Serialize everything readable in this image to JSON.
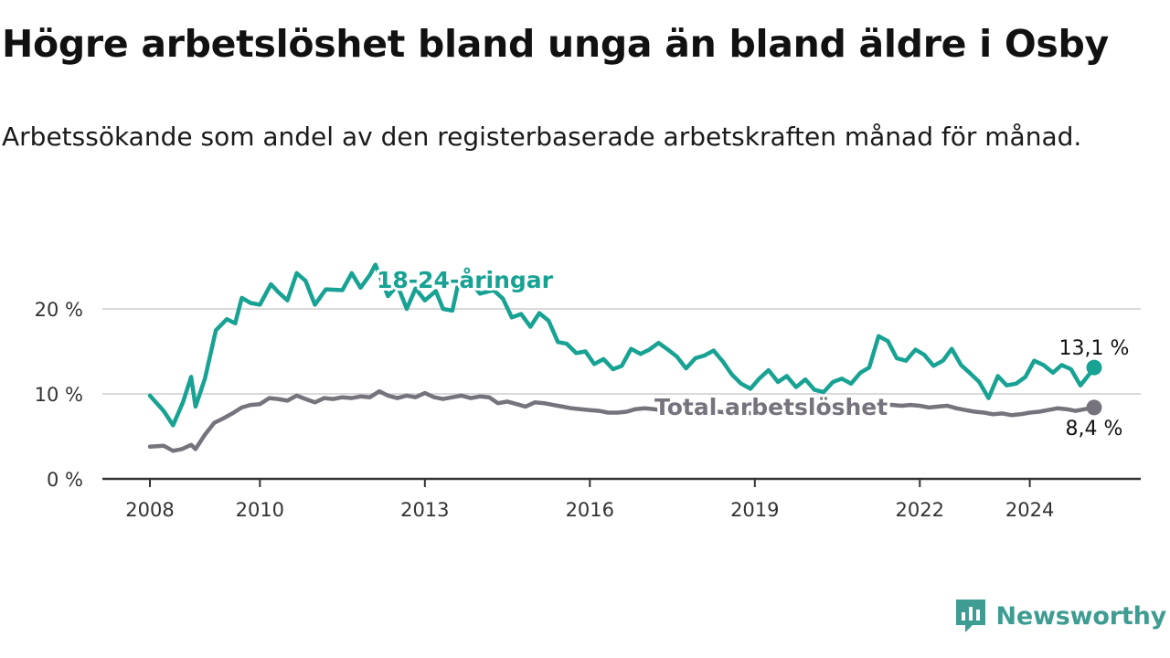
{
  "header": {
    "title": "Högre arbetslöshet bland unga än bland äldre i Osby",
    "subtitle": "Arbetssökande som andel av den registerbaserade arbetskraften månad för månad."
  },
  "brand": {
    "name": "Newsworthy",
    "icon": "newsworthy-logo-icon"
  },
  "colors": {
    "young": "#17a293",
    "total": "#76737d",
    "grid": "#d9d9d9",
    "axis": "#333333"
  },
  "chart_data": {
    "type": "line",
    "title": "Högre arbetslöshet bland unga än bland äldre i Osby",
    "subtitle": "Arbetssökande som andel av den registerbaserade arbetskraften månad för månad.",
    "xlabel": "",
    "ylabel": "",
    "xlim": [
      2008.0,
      2026.25
    ],
    "ylim": [
      0,
      27
    ],
    "grid": true,
    "legend": "direct labels on lines",
    "x_ticks": [
      2008,
      2010,
      2013,
      2016,
      2019,
      2022,
      2024
    ],
    "x_tick_labels": [
      "2008",
      "2010",
      "2013",
      "2016",
      "2019",
      "2022",
      "2024"
    ],
    "y_ticks": [
      0,
      10,
      20
    ],
    "y_tick_labels": [
      "0 %",
      "10 %",
      "20 %"
    ],
    "series": [
      {
        "name": "18-24-åringar",
        "end_label": "13,1 %",
        "points": [
          [
            2008.0,
            9.8
          ],
          [
            2008.25,
            8.0
          ],
          [
            2008.33,
            7.2
          ],
          [
            2008.42,
            6.3
          ],
          [
            2008.6,
            9.0
          ],
          [
            2008.75,
            12.0
          ],
          [
            2008.83,
            8.5
          ],
          [
            2009.0,
            11.8
          ],
          [
            2009.2,
            17.5
          ],
          [
            2009.4,
            18.8
          ],
          [
            2009.55,
            18.3
          ],
          [
            2009.67,
            21.3
          ],
          [
            2009.83,
            20.7
          ],
          [
            2010.0,
            20.5
          ],
          [
            2010.2,
            22.9
          ],
          [
            2010.33,
            22.0
          ],
          [
            2010.5,
            21.0
          ],
          [
            2010.67,
            24.2
          ],
          [
            2010.83,
            23.3
          ],
          [
            2011.0,
            20.5
          ],
          [
            2011.2,
            22.3
          ],
          [
            2011.5,
            22.2
          ],
          [
            2011.67,
            24.2
          ],
          [
            2011.83,
            22.5
          ],
          [
            2012.0,
            24.0
          ],
          [
            2012.1,
            25.2
          ],
          [
            2012.33,
            21.5
          ],
          [
            2012.5,
            22.8
          ],
          [
            2012.67,
            20.0
          ],
          [
            2012.83,
            22.4
          ],
          [
            2013.0,
            21.0
          ],
          [
            2013.2,
            22.1
          ],
          [
            2013.33,
            20.0
          ],
          [
            2013.5,
            19.8
          ],
          [
            2013.6,
            22.8
          ],
          [
            2013.83,
            23.2
          ],
          [
            2014.0,
            21.8
          ],
          [
            2014.25,
            22.2
          ],
          [
            2014.42,
            21.2
          ],
          [
            2014.58,
            19.0
          ],
          [
            2014.75,
            19.4
          ],
          [
            2014.92,
            17.9
          ],
          [
            2015.08,
            19.5
          ],
          [
            2015.25,
            18.6
          ],
          [
            2015.42,
            16.1
          ],
          [
            2015.58,
            15.9
          ],
          [
            2015.75,
            14.8
          ],
          [
            2015.92,
            15.0
          ],
          [
            2016.08,
            13.5
          ],
          [
            2016.25,
            14.1
          ],
          [
            2016.42,
            12.9
          ],
          [
            2016.58,
            13.3
          ],
          [
            2016.75,
            15.3
          ],
          [
            2016.92,
            14.7
          ],
          [
            2017.08,
            15.2
          ],
          [
            2017.25,
            16.0
          ],
          [
            2017.42,
            15.2
          ],
          [
            2017.58,
            14.4
          ],
          [
            2017.75,
            13.0
          ],
          [
            2017.92,
            14.2
          ],
          [
            2018.08,
            14.5
          ],
          [
            2018.25,
            15.1
          ],
          [
            2018.42,
            13.8
          ],
          [
            2018.58,
            12.3
          ],
          [
            2018.75,
            11.2
          ],
          [
            2018.92,
            10.6
          ],
          [
            2019.08,
            11.8
          ],
          [
            2019.25,
            12.8
          ],
          [
            2019.42,
            11.4
          ],
          [
            2019.58,
            12.1
          ],
          [
            2019.75,
            10.8
          ],
          [
            2019.92,
            11.7
          ],
          [
            2020.08,
            10.5
          ],
          [
            2020.25,
            10.2
          ],
          [
            2020.42,
            11.4
          ],
          [
            2020.58,
            11.8
          ],
          [
            2020.75,
            11.2
          ],
          [
            2020.92,
            12.5
          ],
          [
            2021.08,
            13.1
          ],
          [
            2021.25,
            16.8
          ],
          [
            2021.42,
            16.2
          ],
          [
            2021.58,
            14.2
          ],
          [
            2021.75,
            13.9
          ],
          [
            2021.92,
            15.2
          ],
          [
            2022.08,
            14.6
          ],
          [
            2022.25,
            13.3
          ],
          [
            2022.42,
            13.9
          ],
          [
            2022.58,
            15.3
          ],
          [
            2022.75,
            13.4
          ],
          [
            2022.92,
            12.4
          ],
          [
            2023.08,
            11.4
          ],
          [
            2023.25,
            9.5
          ],
          [
            2023.42,
            12.1
          ],
          [
            2023.58,
            11.0
          ],
          [
            2023.75,
            11.2
          ],
          [
            2023.92,
            12.0
          ],
          [
            2024.08,
            13.9
          ],
          [
            2024.25,
            13.4
          ],
          [
            2024.42,
            12.5
          ],
          [
            2024.58,
            13.4
          ],
          [
            2024.75,
            12.9
          ],
          [
            2024.92,
            11.0
          ],
          [
            2025.08,
            12.3
          ],
          [
            2025.17,
            13.1
          ]
        ]
      },
      {
        "name": "Total arbetslöshet",
        "end_label": "8,4 %",
        "points": [
          [
            2008.0,
            3.8
          ],
          [
            2008.25,
            3.9
          ],
          [
            2008.42,
            3.3
          ],
          [
            2008.58,
            3.5
          ],
          [
            2008.75,
            4.0
          ],
          [
            2008.83,
            3.5
          ],
          [
            2009.0,
            5.2
          ],
          [
            2009.17,
            6.6
          ],
          [
            2009.33,
            7.1
          ],
          [
            2009.5,
            7.7
          ],
          [
            2009.67,
            8.4
          ],
          [
            2009.83,
            8.7
          ],
          [
            2010.0,
            8.8
          ],
          [
            2010.17,
            9.5
          ],
          [
            2010.33,
            9.4
          ],
          [
            2010.5,
            9.2
          ],
          [
            2010.67,
            9.8
          ],
          [
            2010.83,
            9.4
          ],
          [
            2011.0,
            9.0
          ],
          [
            2011.17,
            9.5
          ],
          [
            2011.33,
            9.4
          ],
          [
            2011.5,
            9.6
          ],
          [
            2011.67,
            9.5
          ],
          [
            2011.83,
            9.7
          ],
          [
            2012.0,
            9.6
          ],
          [
            2012.17,
            10.3
          ],
          [
            2012.33,
            9.8
          ],
          [
            2012.5,
            9.5
          ],
          [
            2012.67,
            9.8
          ],
          [
            2012.83,
            9.6
          ],
          [
            2013.0,
            10.1
          ],
          [
            2013.17,
            9.6
          ],
          [
            2013.33,
            9.4
          ],
          [
            2013.5,
            9.6
          ],
          [
            2013.67,
            9.8
          ],
          [
            2013.83,
            9.5
          ],
          [
            2014.0,
            9.7
          ],
          [
            2014.17,
            9.6
          ],
          [
            2014.33,
            8.9
          ],
          [
            2014.5,
            9.1
          ],
          [
            2014.67,
            8.8
          ],
          [
            2014.83,
            8.5
          ],
          [
            2015.0,
            9.0
          ],
          [
            2015.17,
            8.9
          ],
          [
            2015.33,
            8.7
          ],
          [
            2015.5,
            8.5
          ],
          [
            2015.67,
            8.3
          ],
          [
            2015.83,
            8.2
          ],
          [
            2016.0,
            8.1
          ],
          [
            2016.17,
            8.0
          ],
          [
            2016.33,
            7.8
          ],
          [
            2016.5,
            7.8
          ],
          [
            2016.67,
            7.9
          ],
          [
            2016.83,
            8.2
          ],
          [
            2017.0,
            8.3
          ],
          [
            2017.17,
            8.2
          ],
          [
            2017.33,
            8.0
          ],
          [
            2017.5,
            7.9
          ],
          [
            2017.67,
            8.1
          ],
          [
            2017.83,
            7.8
          ],
          [
            2018.0,
            8.0
          ],
          [
            2018.17,
            8.2
          ],
          [
            2018.33,
            7.9
          ],
          [
            2018.5,
            7.8
          ],
          [
            2018.67,
            7.9
          ],
          [
            2018.83,
            7.7
          ],
          [
            2019.0,
            7.8
          ],
          [
            2019.17,
            7.9
          ],
          [
            2019.33,
            8.0
          ],
          [
            2019.5,
            8.1
          ],
          [
            2019.67,
            7.9
          ],
          [
            2019.83,
            8.0
          ],
          [
            2020.0,
            8.2
          ],
          [
            2020.17,
            8.3
          ],
          [
            2020.33,
            8.6
          ],
          [
            2020.5,
            8.7
          ],
          [
            2020.67,
            8.5
          ],
          [
            2020.83,
            8.6
          ],
          [
            2021.0,
            8.7
          ],
          [
            2021.17,
            8.9
          ],
          [
            2021.33,
            8.8
          ],
          [
            2021.5,
            8.7
          ],
          [
            2021.67,
            8.6
          ],
          [
            2021.83,
            8.7
          ],
          [
            2022.0,
            8.6
          ],
          [
            2022.17,
            8.4
          ],
          [
            2022.33,
            8.5
          ],
          [
            2022.5,
            8.6
          ],
          [
            2022.67,
            8.3
          ],
          [
            2022.83,
            8.1
          ],
          [
            2023.0,
            7.9
          ],
          [
            2023.17,
            7.8
          ],
          [
            2023.33,
            7.6
          ],
          [
            2023.5,
            7.7
          ],
          [
            2023.67,
            7.5
          ],
          [
            2023.83,
            7.6
          ],
          [
            2024.0,
            7.8
          ],
          [
            2024.17,
            7.9
          ],
          [
            2024.33,
            8.1
          ],
          [
            2024.5,
            8.3
          ],
          [
            2024.67,
            8.2
          ],
          [
            2024.83,
            8.0
          ],
          [
            2025.0,
            8.2
          ],
          [
            2025.17,
            8.4
          ]
        ]
      }
    ]
  }
}
